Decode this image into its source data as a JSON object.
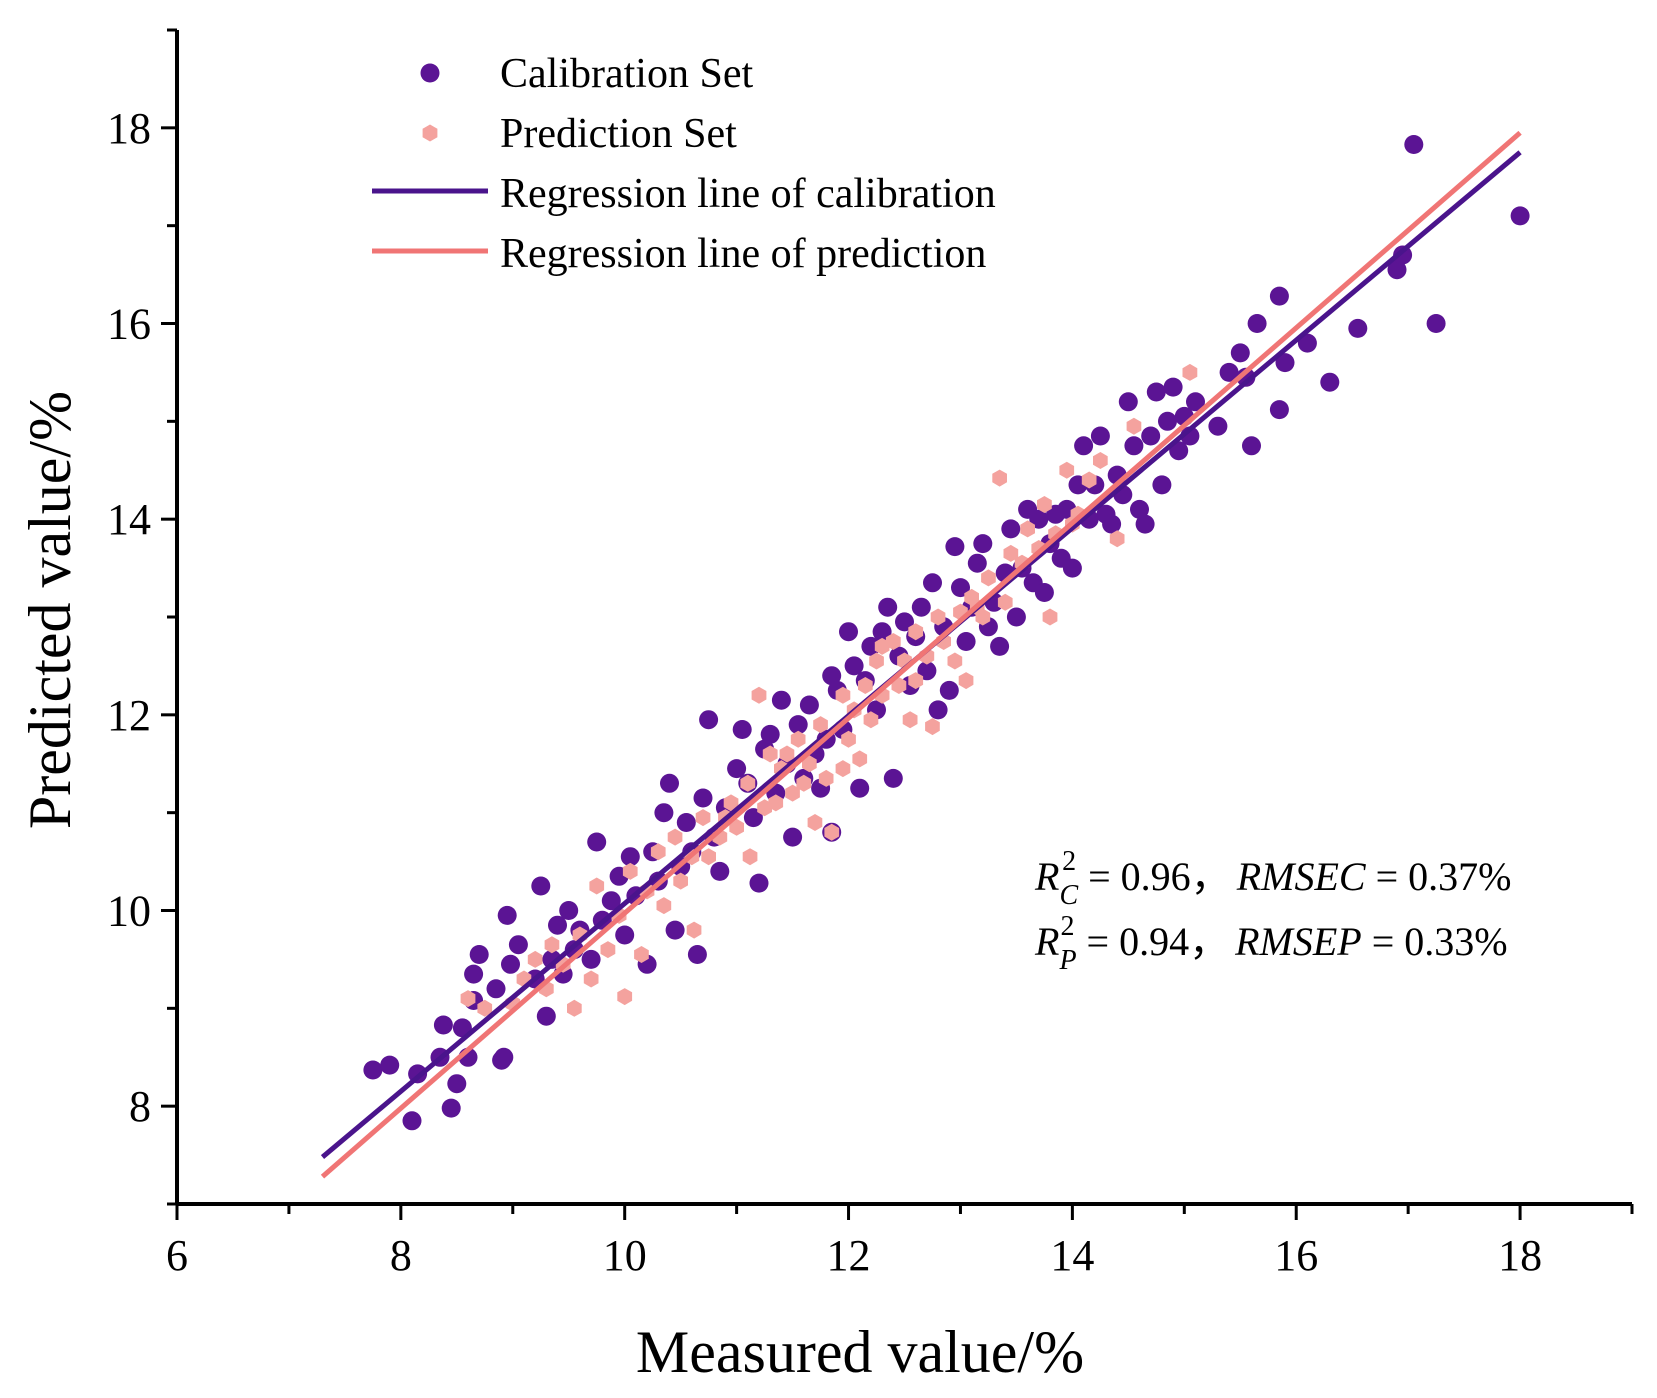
{
  "chart_data": {
    "type": "scatter",
    "xlabel": "Measured value/%",
    "ylabel": "Predicted value/%",
    "xlim": [
      6,
      19
    ],
    "ylim": [
      7,
      19
    ],
    "xticks": [
      6,
      8,
      10,
      12,
      14,
      16,
      18
    ],
    "yticks": [
      8,
      10,
      12,
      14,
      16,
      18
    ],
    "grid": false,
    "legend_position": "top-left",
    "legend": [
      {
        "label": "Calibration Set",
        "kind": "marker",
        "marker": "circle",
        "color": "#5B1494"
      },
      {
        "label": "Prediction Set",
        "kind": "marker",
        "marker": "hexagon",
        "color": "#F4A29E"
      },
      {
        "label": "Regression line of calibration",
        "kind": "line",
        "color": "#4A148C"
      },
      {
        "label": "Regression line of prediction",
        "kind": "line",
        "color": "#F07575"
      }
    ],
    "regression_lines": [
      {
        "name": "Regression line of calibration",
        "color": "#4A148C",
        "x": [
          7.3,
          18.0
        ],
        "y": [
          7.48,
          17.75
        ]
      },
      {
        "name": "Regression line of prediction",
        "color": "#F07575",
        "x": [
          7.3,
          18.0
        ],
        "y": [
          7.28,
          17.95
        ]
      }
    ],
    "annotations": {
      "cal": {
        "R": "R",
        "sub": "C",
        "sup": "2",
        "r2_value": "= 0.96，",
        "metric": "RMSEC",
        "metric_value": "= 0.37%"
      },
      "pred": {
        "R": "R",
        "sub": "P",
        "sup": "2",
        "r2_value": "= 0.94，",
        "metric": "RMSEP",
        "metric_value": "= 0.33%"
      }
    },
    "series": [
      {
        "name": "Calibration Set",
        "marker": "circle",
        "color": "#5B1494",
        "points": [
          [
            7.75,
            8.37
          ],
          [
            7.9,
            8.42
          ],
          [
            8.1,
            7.85
          ],
          [
            8.15,
            8.33
          ],
          [
            8.35,
            8.5
          ],
          [
            8.38,
            8.83
          ],
          [
            8.45,
            7.98
          ],
          [
            8.5,
            8.23
          ],
          [
            8.55,
            8.8
          ],
          [
            8.6,
            8.5
          ],
          [
            8.65,
            9.08
          ],
          [
            8.65,
            9.35
          ],
          [
            8.7,
            9.55
          ],
          [
            8.85,
            9.2
          ],
          [
            8.9,
            8.47
          ],
          [
            8.92,
            8.5
          ],
          [
            8.95,
            9.95
          ],
          [
            8.98,
            9.45
          ],
          [
            9.05,
            9.65
          ],
          [
            9.2,
            9.3
          ],
          [
            9.25,
            10.25
          ],
          [
            9.3,
            8.92
          ],
          [
            9.35,
            9.5
          ],
          [
            9.4,
            9.85
          ],
          [
            9.45,
            9.35
          ],
          [
            9.5,
            10.0
          ],
          [
            9.55,
            9.6
          ],
          [
            9.6,
            9.8
          ],
          [
            9.7,
            9.5
          ],
          [
            9.75,
            10.7
          ],
          [
            9.8,
            9.9
          ],
          [
            9.88,
            10.1
          ],
          [
            9.95,
            10.35
          ],
          [
            10.0,
            9.75
          ],
          [
            10.05,
            10.55
          ],
          [
            10.1,
            10.15
          ],
          [
            10.2,
            9.45
          ],
          [
            10.25,
            10.6
          ],
          [
            10.3,
            10.3
          ],
          [
            10.35,
            11.0
          ],
          [
            10.4,
            11.3
          ],
          [
            10.45,
            9.8
          ],
          [
            10.5,
            10.45
          ],
          [
            10.55,
            10.9
          ],
          [
            10.6,
            10.6
          ],
          [
            10.65,
            9.55
          ],
          [
            10.7,
            11.15
          ],
          [
            10.75,
            11.95
          ],
          [
            10.8,
            10.75
          ],
          [
            10.85,
            10.4
          ],
          [
            10.9,
            11.05
          ],
          [
            11.0,
            11.45
          ],
          [
            11.05,
            11.85
          ],
          [
            11.1,
            11.3
          ],
          [
            11.15,
            10.95
          ],
          [
            11.2,
            10.28
          ],
          [
            11.25,
            11.65
          ],
          [
            11.3,
            11.8
          ],
          [
            11.35,
            11.2
          ],
          [
            11.4,
            12.15
          ],
          [
            11.45,
            11.5
          ],
          [
            11.5,
            10.75
          ],
          [
            11.55,
            11.9
          ],
          [
            11.6,
            11.35
          ],
          [
            11.65,
            12.1
          ],
          [
            11.7,
            11.6
          ],
          [
            11.75,
            11.25
          ],
          [
            11.8,
            11.75
          ],
          [
            11.85,
            10.8
          ],
          [
            11.85,
            12.4
          ],
          [
            11.9,
            12.25
          ],
          [
            11.95,
            11.85
          ],
          [
            12.0,
            12.85
          ],
          [
            12.05,
            12.5
          ],
          [
            12.1,
            11.25
          ],
          [
            12.15,
            12.35
          ],
          [
            12.2,
            12.7
          ],
          [
            12.25,
            12.05
          ],
          [
            12.3,
            12.85
          ],
          [
            12.35,
            13.1
          ],
          [
            12.4,
            11.35
          ],
          [
            12.45,
            12.6
          ],
          [
            12.5,
            12.95
          ],
          [
            12.55,
            12.3
          ],
          [
            12.6,
            12.8
          ],
          [
            12.65,
            13.1
          ],
          [
            12.7,
            12.45
          ],
          [
            12.75,
            13.35
          ],
          [
            12.8,
            12.05
          ],
          [
            12.85,
            12.9
          ],
          [
            12.9,
            12.25
          ],
          [
            12.95,
            13.72
          ],
          [
            13.0,
            13.3
          ],
          [
            13.05,
            12.75
          ],
          [
            13.1,
            13.1
          ],
          [
            13.15,
            13.55
          ],
          [
            13.2,
            13.75
          ],
          [
            13.25,
            12.9
          ],
          [
            13.3,
            13.15
          ],
          [
            13.35,
            12.7
          ],
          [
            13.4,
            13.45
          ],
          [
            13.45,
            13.9
          ],
          [
            13.5,
            13.0
          ],
          [
            13.55,
            13.5
          ],
          [
            13.6,
            14.1
          ],
          [
            13.65,
            13.35
          ],
          [
            13.7,
            14.0
          ],
          [
            13.75,
            13.25
          ],
          [
            13.8,
            13.75
          ],
          [
            13.85,
            14.05
          ],
          [
            13.9,
            13.6
          ],
          [
            13.95,
            14.1
          ],
          [
            14.0,
            13.5
          ],
          [
            14.05,
            14.35
          ],
          [
            14.1,
            14.75
          ],
          [
            14.15,
            14.0
          ],
          [
            14.2,
            14.35
          ],
          [
            14.25,
            14.85
          ],
          [
            14.3,
            14.05
          ],
          [
            14.35,
            13.95
          ],
          [
            14.4,
            14.45
          ],
          [
            14.45,
            14.25
          ],
          [
            14.5,
            15.2
          ],
          [
            14.55,
            14.75
          ],
          [
            14.6,
            14.1
          ],
          [
            14.65,
            13.95
          ],
          [
            14.7,
            14.85
          ],
          [
            14.75,
            15.3
          ],
          [
            14.8,
            14.35
          ],
          [
            14.85,
            15.0
          ],
          [
            14.9,
            15.35
          ],
          [
            14.95,
            14.7
          ],
          [
            15.0,
            15.05
          ],
          [
            15.05,
            14.85
          ],
          [
            15.1,
            15.2
          ],
          [
            15.3,
            14.95
          ],
          [
            15.4,
            15.5
          ],
          [
            15.5,
            15.7
          ],
          [
            15.55,
            15.45
          ],
          [
            15.6,
            14.75
          ],
          [
            15.65,
            16.0
          ],
          [
            15.85,
            16.28
          ],
          [
            15.85,
            15.12
          ],
          [
            15.9,
            15.6
          ],
          [
            16.1,
            15.8
          ],
          [
            16.3,
            15.4
          ],
          [
            16.55,
            15.95
          ],
          [
            16.9,
            16.55
          ],
          [
            16.95,
            16.7
          ],
          [
            17.05,
            17.83
          ],
          [
            17.25,
            16.0
          ],
          [
            18.0,
            17.1
          ]
        ]
      },
      {
        "name": "Prediction Set",
        "marker": "hexagon",
        "color": "#F4A29E",
        "points": [
          [
            8.6,
            9.1
          ],
          [
            8.75,
            9.0
          ],
          [
            9.0,
            9.05
          ],
          [
            9.1,
            9.3
          ],
          [
            9.2,
            9.5
          ],
          [
            9.3,
            9.2
          ],
          [
            9.35,
            9.65
          ],
          [
            9.45,
            9.45
          ],
          [
            9.55,
            9.0
          ],
          [
            9.6,
            9.75
          ],
          [
            9.7,
            9.3
          ],
          [
            9.75,
            10.25
          ],
          [
            9.85,
            9.6
          ],
          [
            9.95,
            9.95
          ],
          [
            10.0,
            9.12
          ],
          [
            10.05,
            10.4
          ],
          [
            10.15,
            9.55
          ],
          [
            10.2,
            10.2
          ],
          [
            10.3,
            10.6
          ],
          [
            10.35,
            10.05
          ],
          [
            10.45,
            10.75
          ],
          [
            10.5,
            10.3
          ],
          [
            10.6,
            10.55
          ],
          [
            10.62,
            9.8
          ],
          [
            10.7,
            10.95
          ],
          [
            10.75,
            10.55
          ],
          [
            10.85,
            10.75
          ],
          [
            10.95,
            11.1
          ],
          [
            11.0,
            10.85
          ],
          [
            11.1,
            11.3
          ],
          [
            11.12,
            10.55
          ],
          [
            11.2,
            12.2
          ],
          [
            11.25,
            11.05
          ],
          [
            11.3,
            11.6
          ],
          [
            11.4,
            11.45
          ],
          [
            11.5,
            11.2
          ],
          [
            11.55,
            11.75
          ],
          [
            11.65,
            11.5
          ],
          [
            11.7,
            10.9
          ],
          [
            11.75,
            11.9
          ],
          [
            11.8,
            11.35
          ],
          [
            11.85,
            10.8
          ],
          [
            11.95,
            12.2
          ],
          [
            12.0,
            11.75
          ],
          [
            12.05,
            12.05
          ],
          [
            12.1,
            11.55
          ],
          [
            12.2,
            11.95
          ],
          [
            12.25,
            12.55
          ],
          [
            12.3,
            12.2
          ],
          [
            12.4,
            12.75
          ],
          [
            12.45,
            12.3
          ],
          [
            12.5,
            12.55
          ],
          [
            12.55,
            11.95
          ],
          [
            12.6,
            12.85
          ],
          [
            12.7,
            12.6
          ],
          [
            12.75,
            11.88
          ],
          [
            12.8,
            13.0
          ],
          [
            12.85,
            12.75
          ],
          [
            12.95,
            12.55
          ],
          [
            13.0,
            13.05
          ],
          [
            13.05,
            12.35
          ],
          [
            13.1,
            13.2
          ],
          [
            13.2,
            13.0
          ],
          [
            13.25,
            13.4
          ],
          [
            13.35,
            14.42
          ],
          [
            13.4,
            13.15
          ],
          [
            13.45,
            13.65
          ],
          [
            13.55,
            13.55
          ],
          [
            13.6,
            13.9
          ],
          [
            13.7,
            13.7
          ],
          [
            13.75,
            14.15
          ],
          [
            13.8,
            13.0
          ],
          [
            13.85,
            13.85
          ],
          [
            13.95,
            14.5
          ],
          [
            14.0,
            13.95
          ],
          [
            14.05,
            14.05
          ],
          [
            14.15,
            14.4
          ],
          [
            14.25,
            14.6
          ],
          [
            14.4,
            13.8
          ],
          [
            14.55,
            14.95
          ],
          [
            15.05,
            15.5
          ],
          [
            11.45,
            11.6
          ],
          [
            11.95,
            11.45
          ],
          [
            12.3,
            12.7
          ],
          [
            12.6,
            12.35
          ],
          [
            10.9,
            10.95
          ],
          [
            11.6,
            11.3
          ],
          [
            13.15,
            13.1
          ],
          [
            12.15,
            12.3
          ],
          [
            11.35,
            11.1
          ]
        ]
      }
    ]
  }
}
